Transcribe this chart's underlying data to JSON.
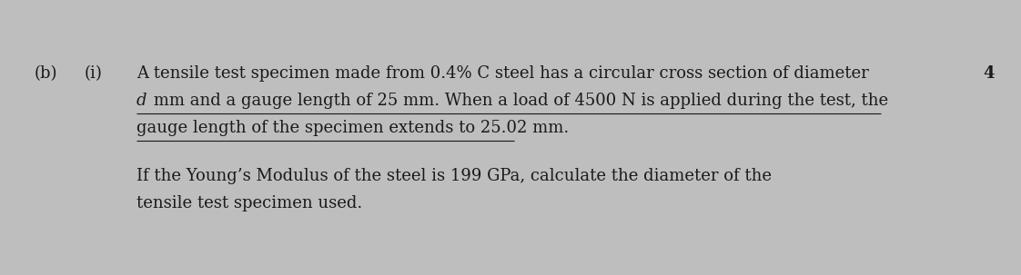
{
  "bg_color": "#bebebe",
  "text_color": "#1a1a1a",
  "label_b": "(b)",
  "label_i": "(i)",
  "line1": "A tensile test specimen made from 0.4% C steel has a circular cross section of diameter",
  "line2_italic": "d",
  "line2_rest": " mm and a gauge length of 25 mm. When a load of 4500 N is applied during the test, the",
  "line3": "gauge length of the specimen extends to 25.02 mm.",
  "line4": "If the Young’s Modulus of the steel is 199 GPa, calculate the diameter of the",
  "line5": "tensile test specimen used.",
  "mark": "4",
  "font_size": 13.0,
  "figwidth": 11.22,
  "figheight": 3.03,
  "dpi": 100
}
